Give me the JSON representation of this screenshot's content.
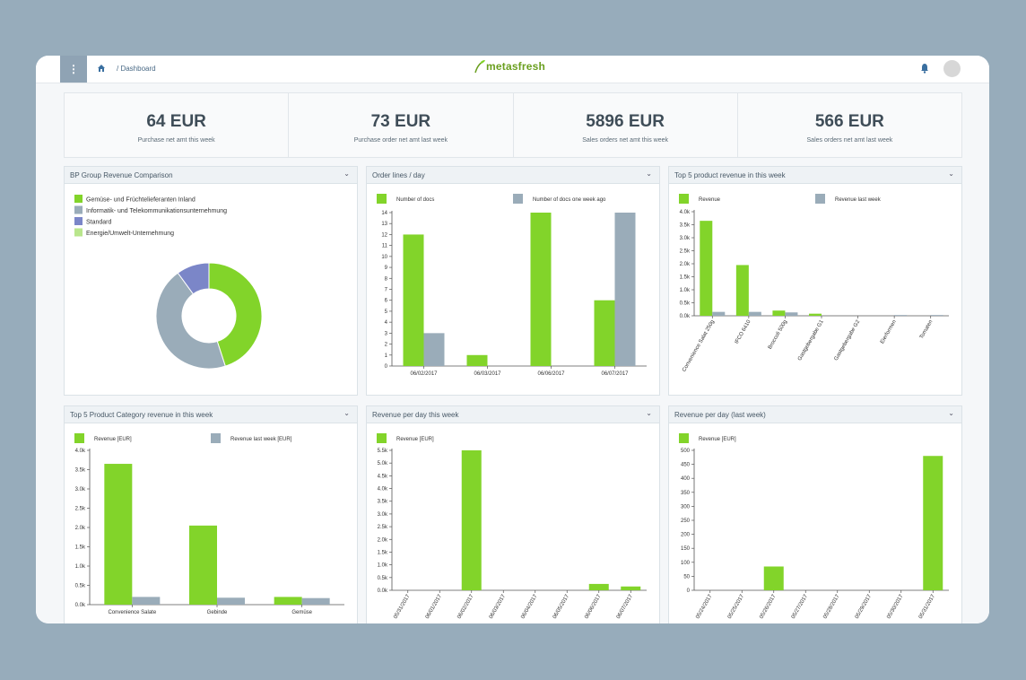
{
  "header": {
    "breadcrumb": "/ Dashboard",
    "logo_text": "metasfresh",
    "menu_icon": "kebab-menu-icon",
    "home_icon": "home-icon",
    "bell_icon": "bell-icon"
  },
  "kpis": [
    {
      "value": "64 EUR",
      "label": "Purchase net amt this week"
    },
    {
      "value": "73 EUR",
      "label": "Purchase order net amt last week"
    },
    {
      "value": "5896 EUR",
      "label": "Sales orders net amt this week"
    },
    {
      "value": "566 EUR",
      "label": "Sales orders net amt last week"
    }
  ],
  "colors": {
    "green": "#82d42a",
    "gray": "#9aacb9",
    "blue": "#7b86c8",
    "lightgreen": "#b9e68c"
  },
  "panels": [
    {
      "title": "BP Group Revenue Comparison"
    },
    {
      "title": "Order lines / day"
    },
    {
      "title": "Top 5 product revenue in this week"
    },
    {
      "title": "Top 5 Product Category revenue in this week"
    },
    {
      "title": "Revenue per day this week"
    },
    {
      "title": "Revenue per day (last week)"
    }
  ],
  "chart_data": [
    {
      "type": "pie",
      "title": "BP Group Revenue Comparison",
      "categories": [
        "Gemüse- und Früchtelieferanten Inland",
        "Informatik- und Telekommunikationsunternehmung",
        "Standard",
        "Energie/Umwelt-Unternehmung"
      ],
      "values": [
        45,
        45,
        10,
        0
      ],
      "colors": [
        "#82d42a",
        "#9aacb9",
        "#7b86c8",
        "#b9e68c"
      ]
    },
    {
      "type": "bar",
      "title": "Order lines / day",
      "categories": [
        "06/02/2017",
        "06/03/2017",
        "06/06/2017",
        "06/07/2017"
      ],
      "series": [
        {
          "name": "Number of docs",
          "values": [
            12,
            1,
            14,
            6
          ]
        },
        {
          "name": "Number of docs one week ago",
          "values": [
            3,
            0,
            0,
            14
          ]
        }
      ],
      "ylim": [
        0,
        14
      ],
      "yticks": [
        "0",
        "1",
        "2",
        "3",
        "4",
        "5",
        "6",
        "7",
        "8",
        "9",
        "10",
        "11",
        "12",
        "13",
        "14"
      ]
    },
    {
      "type": "bar",
      "title": "Top 5 product revenue in this week",
      "categories": [
        "Convenience Salat 250g",
        "IFCO 6410",
        "Broccoli 500g",
        "Gastgebergabe G1",
        "Gastgebergabe G2",
        "Eierformen",
        "Tomaten"
      ],
      "series": [
        {
          "name": "Revenue",
          "values": [
            3650,
            1950,
            200,
            80,
            0,
            0,
            0
          ]
        },
        {
          "name": "Revenue last week",
          "values": [
            150,
            150,
            130,
            0,
            0,
            30,
            30
          ]
        }
      ],
      "ylim": [
        0,
        4000
      ],
      "yticks": [
        "0.0k",
        "0.5k",
        "1.0k",
        "1.5k",
        "2.0k",
        "2.5k",
        "3.0k",
        "3.5k",
        "4.0k"
      ]
    },
    {
      "type": "bar",
      "title": "Top 5 Product Category revenue in this week",
      "categories": [
        "Convenience Salate",
        "Gebinde",
        "Gemüse"
      ],
      "series": [
        {
          "name": "Revenue [EUR]",
          "values": [
            3650,
            2050,
            200
          ]
        },
        {
          "name": "Revenue last week [EUR]",
          "values": [
            200,
            180,
            170
          ]
        }
      ],
      "ylim": [
        0,
        4000
      ],
      "yticks": [
        "0.0k",
        "0.5k",
        "1.0k",
        "1.5k",
        "2.0k",
        "2.5k",
        "3.0k",
        "3.5k",
        "4.0k"
      ]
    },
    {
      "type": "bar",
      "title": "Revenue per day this week",
      "categories": [
        "05/31/2017",
        "06/01/2017",
        "06/02/2017",
        "06/03/2017",
        "06/04/2017",
        "06/05/2017",
        "06/06/2017",
        "06/07/2017"
      ],
      "series": [
        {
          "name": "Revenue [EUR]",
          "values": [
            0,
            0,
            5500,
            0,
            0,
            0,
            250,
            150
          ]
        }
      ],
      "ylim": [
        0,
        5500
      ],
      "yticks": [
        "0.0k",
        "0.5k",
        "1.0k",
        "1.5k",
        "2.0k",
        "2.5k",
        "3.0k",
        "3.5k",
        "4.0k",
        "4.5k",
        "5.0k",
        "5.5k"
      ]
    },
    {
      "type": "bar",
      "title": "Revenue per day (last week)",
      "categories": [
        "05/24/2017",
        "05/25/2017",
        "05/26/2017",
        "05/27/2017",
        "05/28/2017",
        "05/29/2017",
        "05/30/2017",
        "05/31/2017"
      ],
      "series": [
        {
          "name": "Revenue [EUR]",
          "values": [
            0,
            0,
            85,
            0,
            0,
            0,
            0,
            480
          ]
        }
      ],
      "ylim": [
        0,
        500
      ],
      "yticks": [
        "0",
        "50",
        "100",
        "150",
        "200",
        "250",
        "300",
        "350",
        "400",
        "450",
        "500"
      ]
    }
  ]
}
